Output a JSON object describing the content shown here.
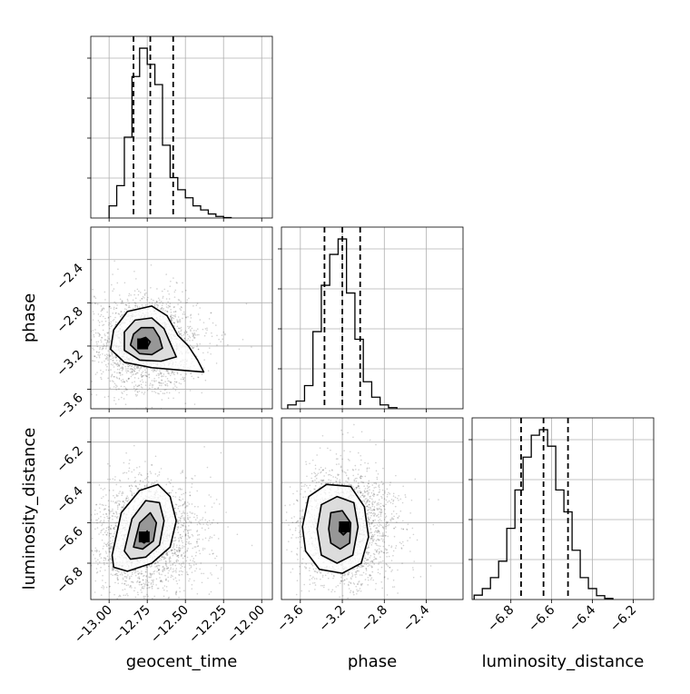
{
  "figure": {
    "type": "corner plot",
    "parameters": [
      "geocent_time",
      "phase",
      "luminosity_distance"
    ]
  },
  "chart_data": [
    {
      "type": "histogram",
      "panel": "geocent_time",
      "xlabel": "geocent_time",
      "xlim": [
        -13.12,
        -11.93
      ],
      "xticks": [
        -13.0,
        -12.75,
        -12.5,
        -12.25,
        -12.0
      ],
      "xticklabels": [
        "−13.00",
        "−12.75",
        "−12.50",
        "−12.25",
        "−12.00"
      ],
      "bin_edges": [
        -13.0,
        -12.95,
        -12.9,
        -12.85,
        -12.8,
        -12.75,
        -12.7,
        -12.65,
        -12.6,
        -12.55,
        -12.5,
        -12.45,
        -12.4,
        -12.35,
        -12.3,
        -12.25,
        -12.2
      ],
      "counts": [
        3,
        8,
        20,
        35,
        42,
        38,
        33,
        18,
        10,
        7,
        5,
        3,
        2,
        1,
        0.4,
        0.1
      ],
      "quantiles": [
        -12.84,
        -12.73,
        -12.58
      ]
    },
    {
      "type": "histogram",
      "panel": "phase",
      "xlabel": "phase",
      "xlim": [
        -3.78,
        -2.05
      ],
      "xticks": [
        -3.6,
        -3.2,
        -2.8,
        -2.4
      ],
      "xticklabels": [
        "−3.6",
        "−3.2",
        "−2.8",
        "−2.4"
      ],
      "bin_edges": [
        -3.72,
        -3.64,
        -3.56,
        -3.48,
        -3.4,
        -3.32,
        -3.24,
        -3.16,
        -3.08,
        -3.0,
        -2.92,
        -2.84,
        -2.76,
        -2.68
      ],
      "counts": [
        1,
        2,
        6,
        20,
        32,
        40,
        44,
        30,
        18,
        7,
        3,
        1,
        0.3
      ],
      "quantiles": [
        -3.37,
        -3.2,
        -3.03
      ]
    },
    {
      "type": "histogram",
      "panel": "luminosity_distance",
      "xlabel": "luminosity_distance",
      "xlim": [
        -6.99,
        -6.1
      ],
      "xticks": [
        -6.8,
        -6.6,
        -6.4,
        -6.2
      ],
      "xticklabels": [
        "−6.8",
        "−6.6",
        "−6.4",
        "−6.2"
      ],
      "bin_edges": [
        -6.98,
        -6.94,
        -6.9,
        -6.86,
        -6.82,
        -6.78,
        -6.74,
        -6.7,
        -6.66,
        -6.62,
        -6.58,
        -6.54,
        -6.5,
        -6.46,
        -6.42,
        -6.38,
        -6.34,
        -6.3
      ],
      "counts": [
        0.8,
        2,
        4,
        7,
        13,
        20,
        26,
        30,
        31,
        28,
        20,
        16,
        9,
        4,
        2,
        0.7,
        0.2
      ],
      "quantiles": [
        -6.75,
        -6.64,
        -6.52
      ]
    },
    {
      "type": "scatter-density",
      "panel": "geocent_time vs phase",
      "xlabel": "geocent_time",
      "ylabel": "phase",
      "xlim": [
        -13.12,
        -11.93
      ],
      "ylim": [
        -3.78,
        -2.1
      ],
      "yticks": [
        -3.6,
        -3.2,
        -2.8,
        -2.4
      ],
      "yticklabels": [
        "−3.6",
        "−3.2",
        "−2.8",
        "−2.4"
      ],
      "peak": [
        -12.78,
        -3.18
      ],
      "contours": [
        [
          [
            -12.97,
            -3.05
          ],
          [
            -12.88,
            -2.88
          ],
          [
            -12.72,
            -2.83
          ],
          [
            -12.62,
            -2.92
          ],
          [
            -12.55,
            -3.1
          ],
          [
            -12.48,
            -3.2
          ],
          [
            -12.42,
            -3.33
          ],
          [
            -12.38,
            -3.44
          ],
          [
            -12.55,
            -3.42
          ],
          [
            -12.72,
            -3.4
          ],
          [
            -12.9,
            -3.35
          ],
          [
            -12.99,
            -3.23
          ]
        ],
        [
          [
            -12.9,
            -3.07
          ],
          [
            -12.83,
            -2.96
          ],
          [
            -12.72,
            -2.94
          ],
          [
            -12.64,
            -3.04
          ],
          [
            -12.6,
            -3.17
          ],
          [
            -12.56,
            -3.3
          ],
          [
            -12.66,
            -3.34
          ],
          [
            -12.8,
            -3.33
          ],
          [
            -12.9,
            -3.24
          ]
        ],
        [
          [
            -12.84,
            -3.09
          ],
          [
            -12.79,
            -3.03
          ],
          [
            -12.71,
            -3.03
          ],
          [
            -12.67,
            -3.12
          ],
          [
            -12.65,
            -3.22
          ],
          [
            -12.72,
            -3.28
          ],
          [
            -12.8,
            -3.27
          ],
          [
            -12.86,
            -3.19
          ]
        ],
        [
          [
            -12.8,
            -3.14
          ],
          [
            -12.76,
            -3.12
          ],
          [
            -12.73,
            -3.16
          ],
          [
            -12.75,
            -3.21
          ],
          [
            -12.79,
            -3.2
          ]
        ]
      ]
    },
    {
      "type": "scatter-density",
      "panel": "geocent_time vs luminosity_distance",
      "xlabel": "geocent_time",
      "ylabel": "luminosity_distance",
      "xlim": [
        -13.12,
        -11.93
      ],
      "ylim": [
        -6.98,
        -6.08
      ],
      "yticks": [
        -6.8,
        -6.6,
        -6.4,
        -6.2
      ],
      "yticklabels": [
        "−6.8",
        "−6.6",
        "−6.4",
        "−6.2"
      ],
      "peak": [
        -12.77,
        -6.67
      ],
      "contours": [
        [
          [
            -12.98,
            -6.76
          ],
          [
            -12.92,
            -6.55
          ],
          [
            -12.8,
            -6.44
          ],
          [
            -12.68,
            -6.41
          ],
          [
            -12.6,
            -6.47
          ],
          [
            -12.56,
            -6.59
          ],
          [
            -12.6,
            -6.72
          ],
          [
            -12.72,
            -6.8
          ],
          [
            -12.88,
            -6.84
          ],
          [
            -12.97,
            -6.82
          ]
        ],
        [
          [
            -12.9,
            -6.74
          ],
          [
            -12.85,
            -6.58
          ],
          [
            -12.76,
            -6.49
          ],
          [
            -12.67,
            -6.5
          ],
          [
            -12.64,
            -6.59
          ],
          [
            -12.67,
            -6.71
          ],
          [
            -12.76,
            -6.77
          ],
          [
            -12.86,
            -6.78
          ]
        ],
        [
          [
            -12.84,
            -6.72
          ],
          [
            -12.8,
            -6.6
          ],
          [
            -12.73,
            -6.55
          ],
          [
            -12.69,
            -6.6
          ],
          [
            -12.71,
            -6.69
          ],
          [
            -12.78,
            -6.73
          ]
        ],
        [
          [
            -12.79,
            -6.69
          ],
          [
            -12.75,
            -6.64
          ],
          [
            -12.74,
            -6.68
          ],
          [
            -12.77,
            -6.7
          ]
        ]
      ]
    },
    {
      "type": "scatter-density",
      "panel": "phase vs luminosity_distance",
      "xlabel": "phase",
      "ylabel": "luminosity_distance",
      "xlim": [
        -3.78,
        -2.05
      ],
      "ylim": [
        -6.98,
        -6.08
      ],
      "peak": [
        -3.18,
        -6.62
      ],
      "contours": [
        [
          [
            -3.58,
            -6.62
          ],
          [
            -3.52,
            -6.47
          ],
          [
            -3.35,
            -6.41
          ],
          [
            -3.12,
            -6.42
          ],
          [
            -2.99,
            -6.52
          ],
          [
            -2.95,
            -6.67
          ],
          [
            -3.02,
            -6.8
          ],
          [
            -3.2,
            -6.85
          ],
          [
            -3.42,
            -6.83
          ],
          [
            -3.55,
            -6.74
          ]
        ],
        [
          [
            -3.44,
            -6.63
          ],
          [
            -3.4,
            -6.51
          ],
          [
            -3.25,
            -6.47
          ],
          [
            -3.09,
            -6.5
          ],
          [
            -3.05,
            -6.62
          ],
          [
            -3.1,
            -6.76
          ],
          [
            -3.25,
            -6.8
          ],
          [
            -3.4,
            -6.76
          ]
        ],
        [
          [
            -3.33,
            -6.63
          ],
          [
            -3.31,
            -6.55
          ],
          [
            -3.2,
            -6.54
          ],
          [
            -3.12,
            -6.6
          ],
          [
            -3.13,
            -6.7
          ],
          [
            -3.22,
            -6.73
          ],
          [
            -3.31,
            -6.7
          ]
        ],
        [
          [
            -3.22,
            -6.6
          ],
          [
            -3.17,
            -6.6
          ],
          [
            -3.15,
            -6.64
          ],
          [
            -3.19,
            -6.66
          ],
          [
            -3.23,
            -6.64
          ]
        ]
      ]
    }
  ]
}
